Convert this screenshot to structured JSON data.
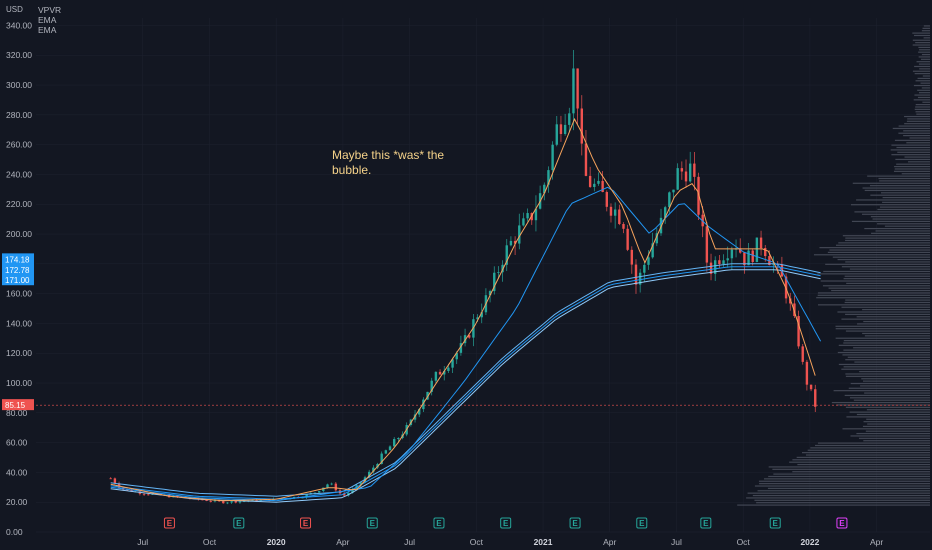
{
  "legend": {
    "symbol": "VPVR",
    "ind1": "EMA",
    "ind2": "EMA"
  },
  "annotation": {
    "text": "Maybe this *was* the bubble."
  },
  "colors": {
    "background": "#131722",
    "grid": "#1e2230",
    "up": "#26a69a",
    "down": "#ef5350",
    "ema_fast": "#f7a35c",
    "ema_mid": "#2196f3",
    "ema_slow": "#64b5f6",
    "price_line": "#ef5350",
    "last_price_bg": "#ef5350",
    "ema_label_bg": "#2196f3",
    "volume_profile": "#4a4f5c",
    "earn_past": "#26a69a",
    "earn_red": "#ef5350",
    "earn_future": "#e040fb"
  },
  "chart_data": {
    "type": "candlestick",
    "currency": "USD",
    "y_ticks": [
      "0.00",
      "20.00",
      "40.00",
      "60.00",
      "80.00",
      "100.00",
      "120.00",
      "140.00",
      "160.00",
      "180.00",
      "200.00",
      "220.00",
      "240.00",
      "260.00",
      "280.00",
      "300.00",
      "320.00",
      "340.00"
    ],
    "x_ticks": [
      {
        "label": "Jul",
        "t": 2019.5,
        "year": false
      },
      {
        "label": "Oct",
        "t": 2019.75,
        "year": false
      },
      {
        "label": "2020",
        "t": 2020.0,
        "year": true
      },
      {
        "label": "Apr",
        "t": 2020.25,
        "year": false
      },
      {
        "label": "Jul",
        "t": 2020.5,
        "year": false
      },
      {
        "label": "Oct",
        "t": 2020.75,
        "year": false
      },
      {
        "label": "2021",
        "t": 2021.0,
        "year": true
      },
      {
        "label": "Apr",
        "t": 2021.25,
        "year": false
      },
      {
        "label": "Jul",
        "t": 2021.5,
        "year": false
      },
      {
        "label": "Oct",
        "t": 2021.75,
        "year": false
      },
      {
        "label": "2022",
        "t": 2022.0,
        "year": true
      },
      {
        "label": "Apr",
        "t": 2022.25,
        "year": false
      }
    ],
    "ylim": [
      0,
      345
    ],
    "xlim": [
      2019.1,
      2022.45
    ],
    "price_path": [
      [
        2019.38,
        36
      ],
      [
        2019.42,
        29
      ],
      [
        2019.5,
        26
      ],
      [
        2019.6,
        24
      ],
      [
        2019.7,
        22
      ],
      [
        2019.8,
        20
      ],
      [
        2019.9,
        21
      ],
      [
        2020.0,
        22
      ],
      [
        2020.1,
        24
      ],
      [
        2020.15,
        27
      ],
      [
        2020.2,
        33
      ],
      [
        2020.25,
        24
      ],
      [
        2020.3,
        30
      ],
      [
        2020.35,
        40
      ],
      [
        2020.4,
        52
      ],
      [
        2020.45,
        62
      ],
      [
        2020.5,
        72
      ],
      [
        2020.55,
        90
      ],
      [
        2020.6,
        105
      ],
      [
        2020.65,
        115
      ],
      [
        2020.7,
        125
      ],
      [
        2020.75,
        145
      ],
      [
        2020.8,
        160
      ],
      [
        2020.85,
        185
      ],
      [
        2020.9,
        200
      ],
      [
        2020.95,
        210
      ],
      [
        2021.0,
        230
      ],
      [
        2021.05,
        270
      ],
      [
        2021.1,
        290
      ],
      [
        2021.12,
        315
      ],
      [
        2021.15,
        240
      ],
      [
        2021.2,
        230
      ],
      [
        2021.25,
        220
      ],
      [
        2021.3,
        210
      ],
      [
        2021.35,
        165
      ],
      [
        2021.4,
        190
      ],
      [
        2021.45,
        210
      ],
      [
        2021.5,
        240
      ],
      [
        2021.55,
        245
      ],
      [
        2021.58,
        220
      ],
      [
        2021.62,
        175
      ],
      [
        2021.66,
        185
      ],
      [
        2021.72,
        195
      ],
      [
        2021.76,
        182
      ],
      [
        2021.82,
        195
      ],
      [
        2021.86,
        180
      ],
      [
        2021.9,
        168
      ],
      [
        2021.95,
        135
      ],
      [
        2021.98,
        105
      ],
      [
        2022.02,
        85.15
      ]
    ],
    "ema_fast": [
      [
        2019.38,
        32
      ],
      [
        2019.6,
        24
      ],
      [
        2019.8,
        21
      ],
      [
        2020.0,
        22
      ],
      [
        2020.2,
        30
      ],
      [
        2020.3,
        28
      ],
      [
        2020.45,
        58
      ],
      [
        2020.6,
        100
      ],
      [
        2020.75,
        140
      ],
      [
        2020.9,
        195
      ],
      [
        2021.0,
        225
      ],
      [
        2021.12,
        278
      ],
      [
        2021.2,
        245
      ],
      [
        2021.3,
        218
      ],
      [
        2021.38,
        180
      ],
      [
        2021.5,
        228
      ],
      [
        2021.57,
        235
      ],
      [
        2021.64,
        190
      ],
      [
        2021.74,
        190
      ],
      [
        2021.84,
        190
      ],
      [
        2021.92,
        160
      ],
      [
        2022.02,
        105
      ]
    ],
    "ema_mid": [
      [
        2019.38,
        30
      ],
      [
        2019.7,
        23
      ],
      [
        2020.0,
        21
      ],
      [
        2020.2,
        26
      ],
      [
        2020.35,
        30
      ],
      [
        2020.5,
        55
      ],
      [
        2020.7,
        100
      ],
      [
        2020.9,
        150
      ],
      [
        2021.1,
        220
      ],
      [
        2021.25,
        232
      ],
      [
        2021.4,
        200
      ],
      [
        2021.52,
        222
      ],
      [
        2021.62,
        205
      ],
      [
        2021.75,
        188
      ],
      [
        2021.88,
        180
      ],
      [
        2022.04,
        128
      ]
    ],
    "ema_slow": [
      [
        2019.38,
        31
      ],
      [
        2019.7,
        24
      ],
      [
        2020.0,
        22
      ],
      [
        2020.25,
        25
      ],
      [
        2020.45,
        45
      ],
      [
        2020.65,
        80
      ],
      [
        2020.85,
        115
      ],
      [
        2021.05,
        145
      ],
      [
        2021.25,
        166
      ],
      [
        2021.45,
        172
      ],
      [
        2021.7,
        178
      ],
      [
        2021.88,
        178
      ],
      [
        2022.04,
        172
      ]
    ],
    "last_price": {
      "value": "85.15",
      "y": 85.15
    },
    "ema_labels": [
      {
        "value": "174.18",
        "y": 183
      },
      {
        "value": "172.78",
        "y": 176
      },
      {
        "value": "171.00",
        "y": 169
      }
    ],
    "earnings": [
      {
        "label": "E",
        "t": 2019.6,
        "kind": "red"
      },
      {
        "label": "E",
        "t": 2019.86,
        "kind": "past"
      },
      {
        "label": "E",
        "t": 2020.11,
        "kind": "red"
      },
      {
        "label": "E",
        "t": 2020.36,
        "kind": "past"
      },
      {
        "label": "E",
        "t": 2020.61,
        "kind": "past"
      },
      {
        "label": "E",
        "t": 2020.86,
        "kind": "past"
      },
      {
        "label": "E",
        "t": 2021.12,
        "kind": "past"
      },
      {
        "label": "E",
        "t": 2021.37,
        "kind": "past"
      },
      {
        "label": "E",
        "t": 2021.61,
        "kind": "past"
      },
      {
        "label": "E",
        "t": 2021.87,
        "kind": "past"
      },
      {
        "label": "E",
        "t": 2022.12,
        "kind": "future"
      }
    ]
  }
}
